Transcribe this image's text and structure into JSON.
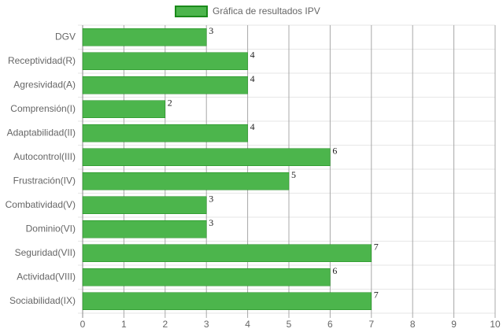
{
  "chart_data": {
    "type": "bar",
    "orientation": "horizontal",
    "categories": [
      "DGV",
      "Receptividad(R)",
      "Agresividad(A)",
      "Comprensión(I)",
      "Adaptabilidad(II)",
      "Autocontrol(III)",
      "Frustración(IV)",
      "Combatividad(V)",
      "Dominio(VI)",
      "Seguridad(VII)",
      "Actividad(VIII)",
      "Sociabilidad(IX)"
    ],
    "series": [
      {
        "name": "Gráfica de resultados IPV",
        "color": "#4cb54c",
        "border_color": "#1a8a1a",
        "values": [
          3,
          4,
          4,
          2,
          4,
          6,
          5,
          3,
          3,
          7,
          6,
          7
        ]
      }
    ],
    "xlim": [
      0,
      10
    ],
    "xticks": [
      0,
      1,
      2,
      3,
      4,
      5,
      6,
      7,
      8,
      9,
      10
    ],
    "grid": true,
    "legend": "top"
  }
}
